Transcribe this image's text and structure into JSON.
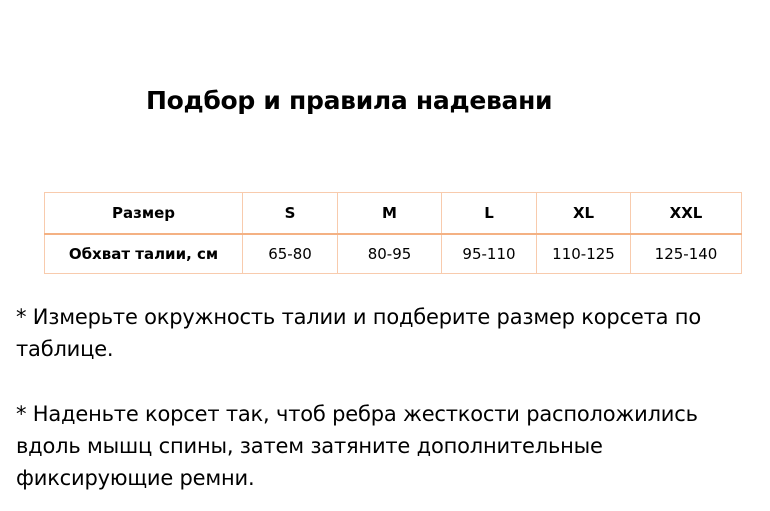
{
  "title": "Подбор и правила надевани",
  "table": {
    "header": [
      "Размер",
      "S",
      "M",
      "L",
      "XL",
      "XXL"
    ],
    "row": [
      "Обхват талии, см",
      "65-80",
      "80-95",
      "95-110",
      "110-125",
      "125-140"
    ]
  },
  "paragraphs": [
    "* Измерьте окружность талии и подберите размер корсета по таблице.",
    "* Наденьте корсет так, чтоб ребра жесткости расположились вдоль мышц спины, затем затяните дополнительные фиксирующие ремни."
  ]
}
